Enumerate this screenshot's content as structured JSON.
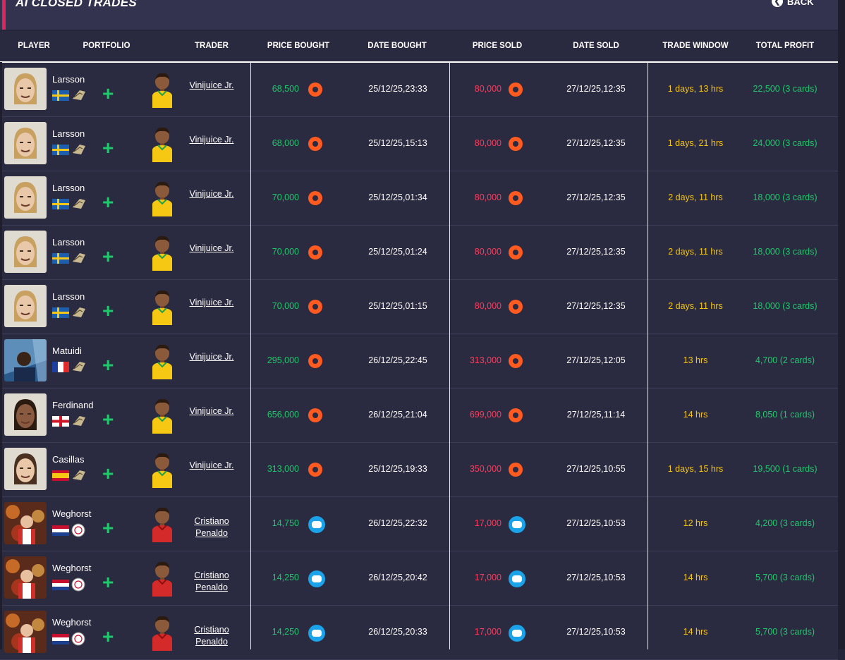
{
  "page": {
    "title": "AI CLOSED TRADES",
    "back_label": "BACK"
  },
  "columns": {
    "player": "PLAYER",
    "portfolio": "PORTFOLIO",
    "trader": "TRADER",
    "price_bought": "PRICE BOUGHT",
    "date_bought": "DATE BOUGHT",
    "price_sold": "PRICE SOLD",
    "date_sold": "DATE SOLD",
    "trade_window": "TRADE WINDOW",
    "total_profit": "TOTAL PROFIT"
  },
  "colors": {
    "accent": "#e0245e",
    "profit": "#1fc96b",
    "sold": "#ff3b5c",
    "window": "#f5c518",
    "coin": "#ff5a1f",
    "console": "#1aa3e8"
  },
  "rows": [
    {
      "player": "Larsson",
      "flag": "sweden",
      "club_icon": "icon-badge",
      "avatar": "larsson",
      "trader": "Vinijuice Jr.",
      "trader_avatar": "yellow",
      "price_bought": "68,500",
      "date_bought": "25/12/25,23:33",
      "price_sold": "80,000",
      "date_sold": "27/12/25,12:35",
      "trade_window": "1 days, 13 hrs",
      "total_profit": "22,500 (3 cards)",
      "currency": "pc-coin"
    },
    {
      "player": "Larsson",
      "flag": "sweden",
      "club_icon": "icon-badge",
      "avatar": "larsson",
      "trader": "Vinijuice Jr.",
      "trader_avatar": "yellow",
      "price_bought": "68,000",
      "date_bought": "25/12/25,15:13",
      "price_sold": "80,000",
      "date_sold": "27/12/25,12:35",
      "trade_window": "1 days, 21 hrs",
      "total_profit": "24,000 (3 cards)",
      "currency": "pc-coin"
    },
    {
      "player": "Larsson",
      "flag": "sweden",
      "club_icon": "icon-badge",
      "avatar": "larsson",
      "trader": "Vinijuice Jr.",
      "trader_avatar": "yellow",
      "price_bought": "70,000",
      "date_bought": "25/12/25,01:34",
      "price_sold": "80,000",
      "date_sold": "27/12/25,12:35",
      "trade_window": "2 days, 11 hrs",
      "total_profit": "18,000 (3 cards)",
      "currency": "pc-coin"
    },
    {
      "player": "Larsson",
      "flag": "sweden",
      "club_icon": "icon-badge",
      "avatar": "larsson",
      "trader": "Vinijuice Jr.",
      "trader_avatar": "yellow",
      "price_bought": "70,000",
      "date_bought": "25/12/25,01:24",
      "price_sold": "80,000",
      "date_sold": "27/12/25,12:35",
      "trade_window": "2 days, 11 hrs",
      "total_profit": "18,000 (3 cards)",
      "currency": "pc-coin"
    },
    {
      "player": "Larsson",
      "flag": "sweden",
      "club_icon": "icon-badge",
      "avatar": "larsson",
      "trader": "Vinijuice Jr.",
      "trader_avatar": "yellow",
      "price_bought": "70,000",
      "date_bought": "25/12/25,01:15",
      "price_sold": "80,000",
      "date_sold": "27/12/25,12:35",
      "trade_window": "2 days, 11 hrs",
      "total_profit": "18,000 (3 cards)",
      "currency": "pc-coin"
    },
    {
      "player": "Matuidi",
      "flag": "france",
      "club_icon": "icon-badge",
      "avatar": "matuidi",
      "trader": "Vinijuice Jr.",
      "trader_avatar": "yellow",
      "price_bought": "295,000",
      "date_bought": "26/12/25,22:45",
      "price_sold": "313,000",
      "date_sold": "27/12/25,12:05",
      "trade_window": "13 hrs",
      "total_profit": "4,700 (2 cards)",
      "currency": "pc-coin"
    },
    {
      "player": "Ferdinand",
      "flag": "england",
      "club_icon": "icon-badge",
      "avatar": "ferdinand",
      "trader": "Vinijuice Jr.",
      "trader_avatar": "yellow",
      "price_bought": "656,000",
      "date_bought": "26/12/25,21:04",
      "price_sold": "699,000",
      "date_sold": "27/12/25,11:14",
      "trade_window": "14 hrs",
      "total_profit": "8,050 (1 cards)",
      "currency": "pc-coin"
    },
    {
      "player": "Casillas",
      "flag": "spain",
      "club_icon": "icon-badge",
      "avatar": "casillas",
      "trader": "Vinijuice Jr.",
      "trader_avatar": "yellow",
      "price_bought": "313,000",
      "date_bought": "25/12/25,19:33",
      "price_sold": "350,000",
      "date_sold": "27/12/25,10:55",
      "trade_window": "1 days, 15 hrs",
      "total_profit": "19,500 (1 cards)",
      "currency": "pc-coin"
    },
    {
      "player": "Weghorst",
      "flag": "netherlands",
      "club_icon": "ajax-badge",
      "avatar": "weghorst",
      "trader_line1": "Cristiano",
      "trader_line2": "Penaldo",
      "trader_avatar": "red",
      "price_bought": "14,750",
      "date_bought": "26/12/25,22:32",
      "price_sold": "17,000",
      "date_sold": "27/12/25,10:53",
      "trade_window": "12 hrs",
      "total_profit": "4,200 (3 cards)",
      "currency": "console"
    },
    {
      "player": "Weghorst",
      "flag": "netherlands",
      "club_icon": "ajax-badge",
      "avatar": "weghorst",
      "trader_line1": "Cristiano",
      "trader_line2": "Penaldo",
      "trader_avatar": "red",
      "price_bought": "14,250",
      "date_bought": "26/12/25,20:42",
      "price_sold": "17,000",
      "date_sold": "27/12/25,10:53",
      "trade_window": "14 hrs",
      "total_profit": "5,700 (3 cards)",
      "currency": "console"
    },
    {
      "player": "Weghorst",
      "flag": "netherlands",
      "club_icon": "ajax-badge",
      "avatar": "weghorst",
      "trader_line1": "Cristiano",
      "trader_line2": "Penaldo",
      "trader_avatar": "red",
      "price_bought": "14,250",
      "date_bought": "26/12/25,20:33",
      "price_sold": "17,000",
      "date_sold": "27/12/25,10:53",
      "trade_window": "14 hrs",
      "total_profit": "5,700 (3 cards)",
      "currency": "console"
    }
  ]
}
